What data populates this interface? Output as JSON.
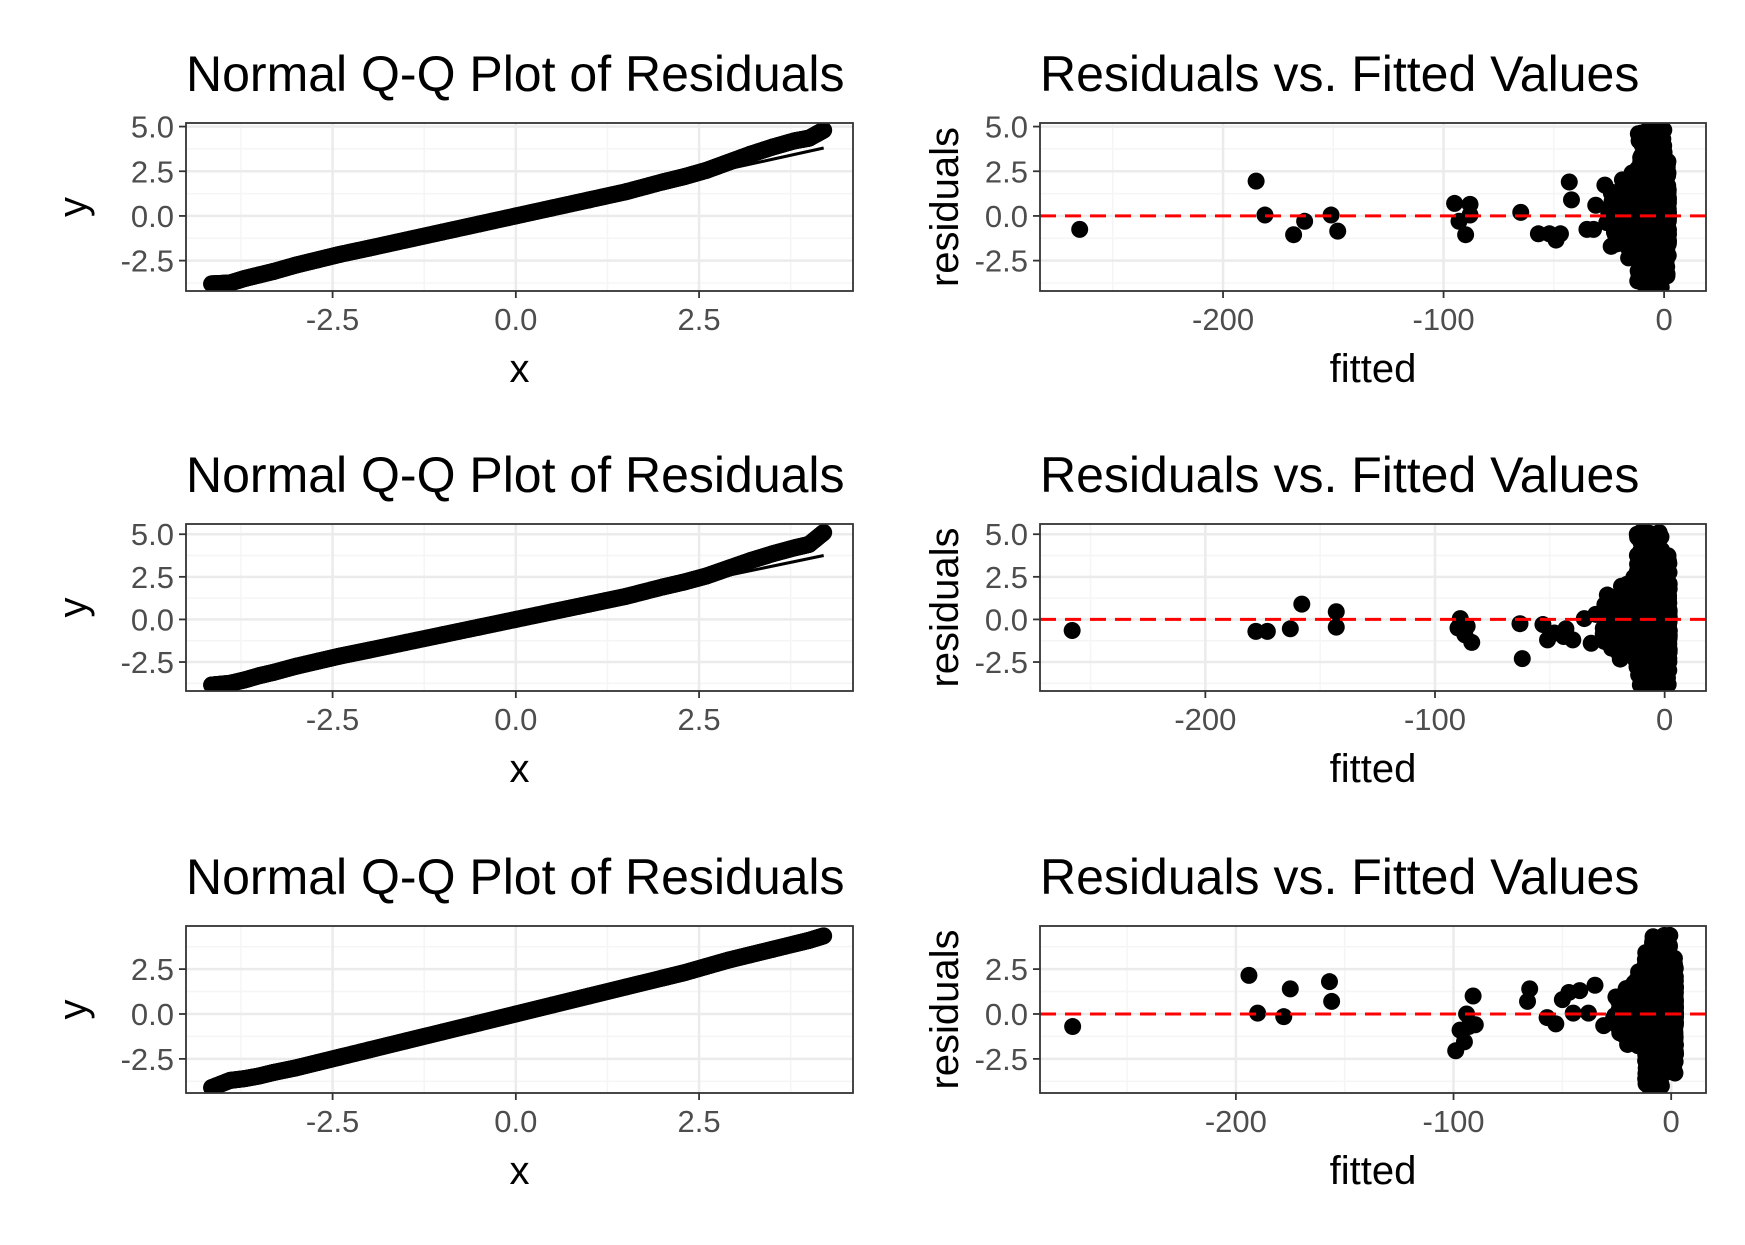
{
  "colors": {
    "panel_border": "#333333",
    "grid_major": "#ebebeb",
    "grid_minor": "#f5f5f5",
    "points": "#000000",
    "qq_line": "#000000",
    "zero_line": "#ff0000",
    "tick_label": "#4d4d4d"
  },
  "chart_data": [
    {
      "type": "scatter",
      "kind": "qq",
      "row": 0,
      "col": 0,
      "title": "Normal Q-Q Plot of Residuals",
      "xlabel": "x",
      "ylabel": "y",
      "xlim": [
        -4.5,
        4.6
      ],
      "ylim": [
        -4.2,
        5.2
      ],
      "xticks": [
        "-2.5",
        "0.0",
        "2.5"
      ],
      "xtick_values": [
        -2.5,
        0.0,
        2.5
      ],
      "yticks": [
        "-2.5",
        "0.0",
        "2.5",
        "5.0"
      ],
      "ytick_values": [
        -2.5,
        0.0,
        2.5,
        5.0
      ],
      "reference_line": [
        [
          -4.15,
          -3.7
        ],
        [
          4.2,
          3.8
        ]
      ],
      "x": [
        -4.15,
        -3.9,
        -3.7,
        -3.5,
        -3.3,
        -3.0,
        -2.7,
        -2.4,
        -2.0,
        -1.5,
        -1.0,
        -0.5,
        0.0,
        0.5,
        1.0,
        1.5,
        2.0,
        2.3,
        2.6,
        2.9,
        3.2,
        3.5,
        3.8,
        4.0,
        4.2
      ],
      "y": [
        -3.8,
        -3.75,
        -3.5,
        -3.3,
        -3.1,
        -2.75,
        -2.45,
        -2.15,
        -1.8,
        -1.35,
        -0.9,
        -0.45,
        0.0,
        0.45,
        0.9,
        1.35,
        1.9,
        2.2,
        2.55,
        3.0,
        3.45,
        3.85,
        4.2,
        4.35,
        4.8
      ]
    },
    {
      "type": "scatter",
      "kind": "residuals",
      "row": 0,
      "col": 1,
      "title": "Residuals vs. Fitted Values",
      "xlabel": "fitted",
      "ylabel": "residuals",
      "xlim": [
        -283,
        19
      ],
      "ylim": [
        -4.2,
        5.2
      ],
      "xticks": [
        "-200",
        "-100",
        "0"
      ],
      "xtick_values": [
        -200,
        -100,
        0
      ],
      "yticks": [
        "-2.5",
        "0.0",
        "2.5",
        "5.0"
      ],
      "ytick_values": [
        -2.5,
        0.0,
        2.5,
        5.0
      ],
      "reference_hline": 0,
      "x": [
        -265,
        -185,
        -181,
        -168,
        -163,
        -151,
        -148,
        -95,
        -93,
        -90,
        -88,
        -88,
        -65,
        -57,
        -52,
        -49,
        -47,
        -43,
        -42,
        -35,
        -32,
        -31
      ],
      "y": [
        -0.75,
        1.95,
        0.05,
        -1.05,
        -0.3,
        0.05,
        -0.85,
        0.7,
        -0.3,
        -1.05,
        0.65,
        0.05,
        0.2,
        -1.0,
        -1.0,
        -1.35,
        -1.0,
        1.9,
        0.9,
        -0.75,
        -0.75,
        0.6
      ],
      "dense_cluster": {
        "x_range": [
          -28,
          2
        ],
        "y_range": [
          -4.0,
          5.0
        ]
      }
    },
    {
      "type": "scatter",
      "kind": "qq",
      "row": 1,
      "col": 0,
      "title": "Normal Q-Q Plot of Residuals",
      "xlabel": "x",
      "ylabel": "y",
      "xlim": [
        -4.5,
        4.6
      ],
      "ylim": [
        -4.2,
        5.6
      ],
      "xticks": [
        "-2.5",
        "0.0",
        "2.5"
      ],
      "xtick_values": [
        -2.5,
        0.0,
        2.5
      ],
      "yticks": [
        "-2.5",
        "0.0",
        "2.5",
        "5.0"
      ],
      "ytick_values": [
        -2.5,
        0.0,
        2.5,
        5.0
      ],
      "reference_line": [
        [
          -4.15,
          -3.7
        ],
        [
          4.2,
          3.75
        ]
      ],
      "x": [
        -4.15,
        -3.9,
        -3.7,
        -3.5,
        -3.3,
        -3.0,
        -2.7,
        -2.4,
        -2.0,
        -1.5,
        -1.0,
        -0.5,
        0.0,
        0.5,
        1.0,
        1.5,
        2.0,
        2.3,
        2.6,
        2.9,
        3.2,
        3.5,
        3.8,
        4.0,
        4.2
      ],
      "y": [
        -3.85,
        -3.75,
        -3.55,
        -3.3,
        -3.1,
        -2.75,
        -2.45,
        -2.15,
        -1.8,
        -1.35,
        -0.9,
        -0.45,
        0.0,
        0.45,
        0.9,
        1.35,
        1.9,
        2.2,
        2.55,
        3.0,
        3.45,
        3.85,
        4.2,
        4.4,
        5.1
      ]
    },
    {
      "type": "scatter",
      "kind": "residuals",
      "row": 1,
      "col": 1,
      "title": "Residuals vs. Fitted Values",
      "xlabel": "fitted",
      "ylabel": "residuals",
      "xlim": [
        -272,
        18
      ],
      "ylim": [
        -4.2,
        5.6
      ],
      "xticks": [
        "-200",
        "-100",
        "0"
      ],
      "xtick_values": [
        -200,
        -100,
        0
      ],
      "yticks": [
        "-2.5",
        "0.0",
        "2.5",
        "5.0"
      ],
      "ytick_values": [
        -2.5,
        0.0,
        2.5,
        5.0
      ],
      "reference_hline": 0,
      "x": [
        -258,
        -178,
        -173,
        -163,
        -158,
        -143,
        -143,
        -90,
        -89,
        -87,
        -86,
        -84,
        -63,
        -62,
        -53,
        -51,
        -48,
        -44,
        -43,
        -40,
        -35,
        -32,
        -30
      ],
      "y": [
        -0.65,
        -0.7,
        -0.7,
        -0.55,
        0.9,
        0.45,
        -0.45,
        -0.5,
        0.05,
        -0.9,
        -0.4,
        -1.35,
        -0.25,
        -2.3,
        -0.3,
        -1.2,
        -0.8,
        -1.0,
        -0.55,
        -1.2,
        0.05,
        -1.4,
        0.3
      ],
      "dense_cluster": {
        "x_range": [
          -28,
          2
        ],
        "y_range": [
          -4.0,
          5.2
        ]
      }
    },
    {
      "type": "scatter",
      "kind": "qq",
      "row": 2,
      "col": 0,
      "title": "Normal Q-Q Plot of Residuals",
      "xlabel": "x",
      "ylabel": "y",
      "xlim": [
        -4.5,
        4.6
      ],
      "ylim": [
        -4.4,
        4.9
      ],
      "xticks": [
        "-2.5",
        "0.0",
        "2.5"
      ],
      "xtick_values": [
        -2.5,
        0.0,
        2.5
      ],
      "yticks": [
        "-2.5",
        "0.0",
        "2.5"
      ],
      "ytick_values": [
        -2.5,
        0.0,
        2.5
      ],
      "reference_line": [
        [
          -4.15,
          -4.05
        ],
        [
          4.2,
          4.3
        ]
      ],
      "x": [
        -4.15,
        -3.9,
        -3.7,
        -3.5,
        -3.3,
        -3.0,
        -2.7,
        -2.4,
        -2.0,
        -1.5,
        -1.0,
        -0.5,
        0.0,
        0.5,
        1.0,
        1.5,
        2.0,
        2.3,
        2.6,
        2.9,
        3.2,
        3.5,
        3.8,
        4.0,
        4.2
      ],
      "y": [
        -4.1,
        -3.7,
        -3.6,
        -3.45,
        -3.25,
        -3.0,
        -2.7,
        -2.4,
        -2.0,
        -1.5,
        -1.0,
        -0.5,
        0.0,
        0.5,
        1.0,
        1.5,
        2.0,
        2.3,
        2.65,
        3.0,
        3.3,
        3.6,
        3.9,
        4.1,
        4.35
      ]
    },
    {
      "type": "scatter",
      "kind": "residuals",
      "row": 2,
      "col": 1,
      "title": "Residuals vs. Fitted Values",
      "xlabel": "fitted",
      "ylabel": "residuals",
      "xlim": [
        -290,
        16
      ],
      "ylim": [
        -4.4,
        4.9
      ],
      "xticks": [
        "-200",
        "-100",
        "0"
      ],
      "xtick_values": [
        -200,
        -100,
        0
      ],
      "yticks": [
        "-2.5",
        "0.0",
        "2.5"
      ],
      "ytick_values": [
        -2.5,
        0.0,
        2.5
      ],
      "reference_hline": 0,
      "x": [
        -275,
        -194,
        -190,
        -178,
        -175,
        -157,
        -156,
        -99,
        -97,
        -95,
        -94,
        -93,
        -91,
        -90,
        -66,
        -65,
        -57,
        -53,
        -50,
        -47,
        -45,
        -42,
        -38,
        -35,
        -31
      ],
      "y": [
        -0.7,
        2.15,
        0.05,
        -0.15,
        1.4,
        1.8,
        0.7,
        -2.05,
        -0.9,
        -1.55,
        0.0,
        -0.7,
        1.0,
        -0.6,
        0.7,
        1.4,
        -0.2,
        -0.55,
        0.8,
        1.2,
        0.05,
        1.3,
        0.05,
        1.6,
        -0.65
      ],
      "dense_cluster": {
        "x_range": [
          -27,
          2
        ],
        "y_range": [
          -4.2,
          4.4
        ]
      }
    }
  ]
}
